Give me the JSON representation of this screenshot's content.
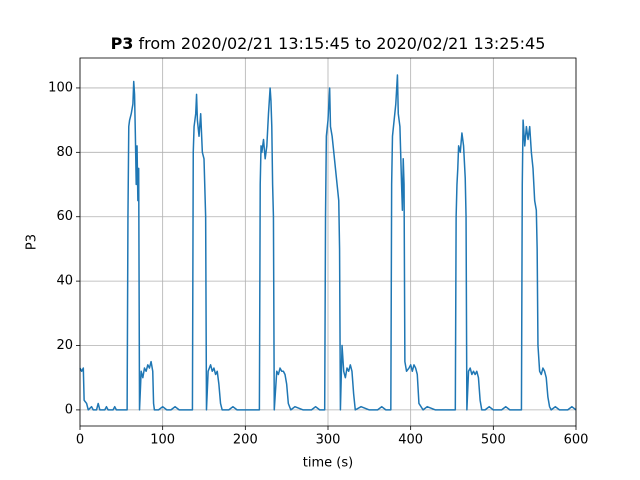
{
  "chart_data": {
    "type": "line",
    "title_bold": "P3",
    "title": "from 2020/02/21 13:15:45 to 2020/02/21 13:25:45",
    "x_label": "time (s)",
    "y_label": "P3",
    "color": "#1f77b4",
    "grid": true,
    "xlim": [
      0,
      600
    ],
    "xticks": [
      0,
      100,
      200,
      300,
      400,
      500,
      600
    ],
    "ylim": [
      -5,
      109.3
    ],
    "yticks": [
      0,
      20,
      40,
      60,
      80,
      100
    ],
    "x": [
      0,
      2,
      4,
      5,
      8,
      10,
      14,
      16,
      20,
      22,
      24,
      30,
      32,
      34,
      40,
      42,
      44,
      50,
      55,
      57,
      58,
      59,
      60,
      62,
      64,
      65,
      66,
      67,
      68,
      69,
      70,
      71,
      72,
      74,
      76,
      78,
      80,
      82,
      84,
      86,
      88,
      89,
      90,
      95,
      100,
      105,
      110,
      115,
      120,
      125,
      130,
      135,
      136,
      137,
      138,
      140,
      141,
      142,
      144,
      146,
      148,
      150,
      152,
      153,
      155,
      158,
      160,
      162,
      164,
      166,
      168,
      170,
      172,
      180,
      185,
      190,
      195,
      200,
      205,
      210,
      215,
      217,
      218,
      219,
      220,
      222,
      224,
      226,
      228,
      230,
      231,
      232,
      233,
      234,
      235,
      238,
      240,
      242,
      244,
      246,
      248,
      250,
      252,
      255,
      260,
      270,
      280,
      285,
      290,
      296,
      297,
      298,
      300,
      302,
      303,
      305,
      307,
      309,
      311,
      313,
      314,
      315,
      317,
      319,
      321,
      323,
      325,
      327,
      329,
      331,
      333,
      340,
      350,
      360,
      365,
      370,
      376,
      377,
      378,
      380,
      382,
      384,
      385,
      387,
      389,
      390,
      391,
      392,
      393,
      395,
      398,
      400,
      402,
      404,
      406,
      408,
      410,
      415,
      420,
      430,
      440,
      450,
      454,
      455,
      456,
      457,
      458,
      460,
      462,
      464,
      466,
      467,
      468,
      470,
      472,
      474,
      476,
      478,
      480,
      482,
      484,
      486,
      490,
      495,
      500,
      510,
      515,
      520,
      530,
      534,
      535,
      536,
      538,
      540,
      542,
      544,
      546,
      548,
      550,
      552,
      553,
      554,
      556,
      558,
      560,
      562,
      564,
      566,
      568,
      570,
      575,
      580,
      590,
      595,
      600
    ],
    "values": [
      13,
      12,
      13,
      3,
      2,
      0,
      1,
      0,
      0,
      2,
      0,
      0,
      1,
      0,
      0,
      1,
      0,
      0,
      0,
      0,
      60,
      88,
      90,
      92,
      95,
      102,
      98,
      85,
      70,
      82,
      65,
      75,
      0,
      12,
      10,
      13,
      12,
      14,
      13,
      15,
      12,
      2,
      0,
      0,
      1,
      0,
      0,
      1,
      0,
      0,
      0,
      0,
      0,
      80,
      88,
      92,
      98,
      90,
      85,
      92,
      80,
      78,
      60,
      0,
      12,
      14,
      12,
      13,
      11,
      12,
      8,
      2,
      0,
      0,
      1,
      0,
      0,
      0,
      0,
      0,
      0,
      0,
      70,
      82,
      80,
      84,
      78,
      82,
      92,
      100,
      96,
      88,
      70,
      60,
      0,
      12,
      11,
      13,
      12,
      12,
      11,
      8,
      2,
      0,
      1,
      0,
      0,
      1,
      0,
      0,
      60,
      85,
      90,
      100,
      88,
      85,
      80,
      75,
      70,
      65,
      50,
      0,
      20,
      12,
      10,
      13,
      12,
      14,
      12,
      5,
      0,
      1,
      0,
      0,
      1,
      0,
      0,
      70,
      85,
      90,
      95,
      104,
      92,
      88,
      70,
      62,
      78,
      70,
      15,
      12,
      13,
      14,
      12,
      14,
      13,
      11,
      2,
      0,
      1,
      0,
      0,
      0,
      0,
      60,
      70,
      75,
      82,
      80,
      86,
      82,
      72,
      60,
      0,
      12,
      13,
      11,
      12,
      11,
      12,
      10,
      3,
      0,
      0,
      1,
      0,
      0,
      1,
      0,
      0,
      0,
      70,
      90,
      82,
      88,
      84,
      88,
      80,
      75,
      65,
      62,
      50,
      20,
      12,
      11,
      13,
      12,
      10,
      4,
      1,
      0,
      1,
      0,
      0,
      1,
      0
    ]
  }
}
